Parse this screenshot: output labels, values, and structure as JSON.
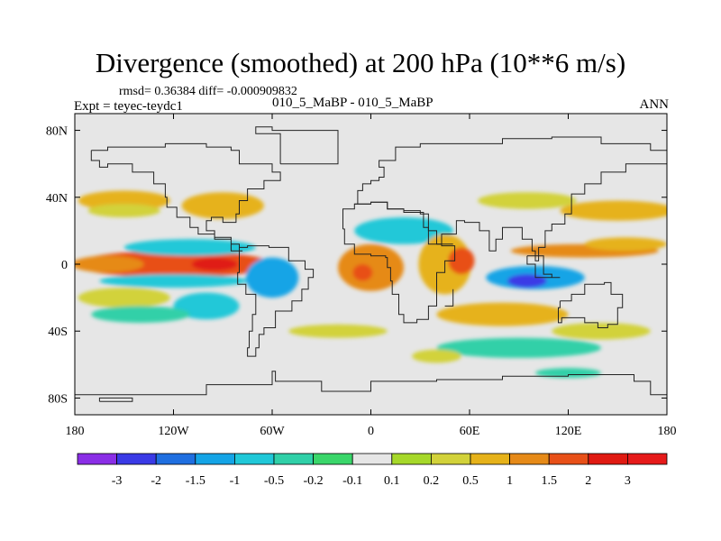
{
  "chart_data": {
    "type": "heatmap",
    "title": "Divergence (smoothed) at 200 hPa (10**6 m/s)",
    "rmsd_label": "rmsd= 0.36384 diff= -0.000909832",
    "expt_label": "Expt = teyec-teydc1",
    "case_label": "010_5_MaBP - 010_5_MaBP",
    "season_label": "ANN",
    "xlabel": "",
    "ylabel": "",
    "xlim": [
      -180,
      180
    ],
    "ylim": [
      -90,
      90
    ],
    "x_ticks": [
      {
        "value": -180,
        "label": "180"
      },
      {
        "value": -120,
        "label": "120W"
      },
      {
        "value": -60,
        "label": "60W"
      },
      {
        "value": 0,
        "label": "0"
      },
      {
        "value": 60,
        "label": "60E"
      },
      {
        "value": 120,
        "label": "120E"
      },
      {
        "value": 180,
        "label": "180"
      }
    ],
    "y_ticks": [
      {
        "value": 80,
        "label": "80N"
      },
      {
        "value": 40,
        "label": "40N"
      },
      {
        "value": 0,
        "label": "0"
      },
      {
        "value": -40,
        "label": "40S"
      },
      {
        "value": -80,
        "label": "80S"
      }
    ],
    "colorbar": {
      "labels": [
        "-3",
        "-2",
        "-1.5",
        "-1",
        "-0.5",
        "-0.2",
        "-0.1",
        "0.1",
        "0.2",
        "0.5",
        "1",
        "1.5",
        "2",
        "3"
      ],
      "colors": [
        "#8a2ee6",
        "#3a3ae6",
        "#1f6fe0",
        "#14a4e6",
        "#20c8d8",
        "#30d0a8",
        "#3ad66a",
        "#e6e6e6",
        "#a6d82a",
        "#d2d23a",
        "#e6b21a",
        "#e68a18",
        "#e85018",
        "#e01a12",
        "#e61a1a"
      ]
    },
    "features": [
      {
        "lon": -120,
        "lat": 0,
        "rx": 60,
        "ry": 8,
        "value": 1.6
      },
      {
        "lon": -95,
        "lat": 0,
        "rx": 14,
        "ry": 4,
        "value": 2.2
      },
      {
        "lon": -160,
        "lat": 0,
        "rx": 22,
        "ry": 5,
        "value": 1.2
      },
      {
        "lon": -110,
        "lat": 10,
        "rx": 40,
        "ry": 5,
        "value": -0.7
      },
      {
        "lon": -120,
        "lat": -10,
        "rx": 45,
        "ry": 4,
        "value": -0.5
      },
      {
        "lon": -60,
        "lat": -8,
        "rx": 16,
        "ry": 12,
        "value": -1.0
      },
      {
        "lon": -150,
        "lat": 38,
        "rx": 28,
        "ry": 6,
        "value": 0.7
      },
      {
        "lon": -150,
        "lat": 32,
        "rx": 22,
        "ry": 4,
        "value": 0.3
      },
      {
        "lon": -90,
        "lat": 35,
        "rx": 25,
        "ry": 8,
        "value": 0.8
      },
      {
        "lon": -150,
        "lat": -20,
        "rx": 28,
        "ry": 6,
        "value": 0.3
      },
      {
        "lon": -100,
        "lat": -25,
        "rx": 20,
        "ry": 8,
        "value": -0.5
      },
      {
        "lon": -140,
        "lat": -30,
        "rx": 30,
        "ry": 5,
        "value": -0.4
      },
      {
        "lon": -20,
        "lat": -40,
        "rx": 30,
        "ry": 4,
        "value": 0.3
      },
      {
        "lon": 0,
        "lat": -2,
        "rx": 20,
        "ry": 14,
        "value": 1.3
      },
      {
        "lon": -5,
        "lat": -5,
        "rx": 6,
        "ry": 5,
        "value": 2.0
      },
      {
        "lon": 20,
        "lat": 20,
        "rx": 30,
        "ry": 8,
        "value": -0.5
      },
      {
        "lon": 45,
        "lat": 0,
        "rx": 16,
        "ry": 18,
        "value": 0.9
      },
      {
        "lon": 55,
        "lat": 2,
        "rx": 8,
        "ry": 8,
        "value": 1.8
      },
      {
        "lon": 100,
        "lat": -8,
        "rx": 30,
        "ry": 7,
        "value": -1.2
      },
      {
        "lon": 95,
        "lat": -10,
        "rx": 12,
        "ry": 4,
        "value": -2.0
      },
      {
        "lon": 130,
        "lat": 8,
        "rx": 45,
        "ry": 4,
        "value": 1.5
      },
      {
        "lon": 155,
        "lat": 12,
        "rx": 25,
        "ry": 4,
        "value": 1.0
      },
      {
        "lon": 150,
        "lat": 32,
        "rx": 35,
        "ry": 6,
        "value": 0.8
      },
      {
        "lon": 95,
        "lat": 38,
        "rx": 30,
        "ry": 5,
        "value": 0.5
      },
      {
        "lon": 80,
        "lat": -30,
        "rx": 40,
        "ry": 7,
        "value": 0.7
      },
      {
        "lon": 90,
        "lat": -50,
        "rx": 50,
        "ry": 6,
        "value": -0.4
      },
      {
        "lon": 140,
        "lat": -40,
        "rx": 30,
        "ry": 5,
        "value": 0.4
      },
      {
        "lon": 40,
        "lat": -55,
        "rx": 15,
        "ry": 4,
        "value": 0.3
      },
      {
        "lon": 120,
        "lat": -65,
        "rx": 20,
        "ry": 3,
        "value": -0.2
      }
    ]
  }
}
